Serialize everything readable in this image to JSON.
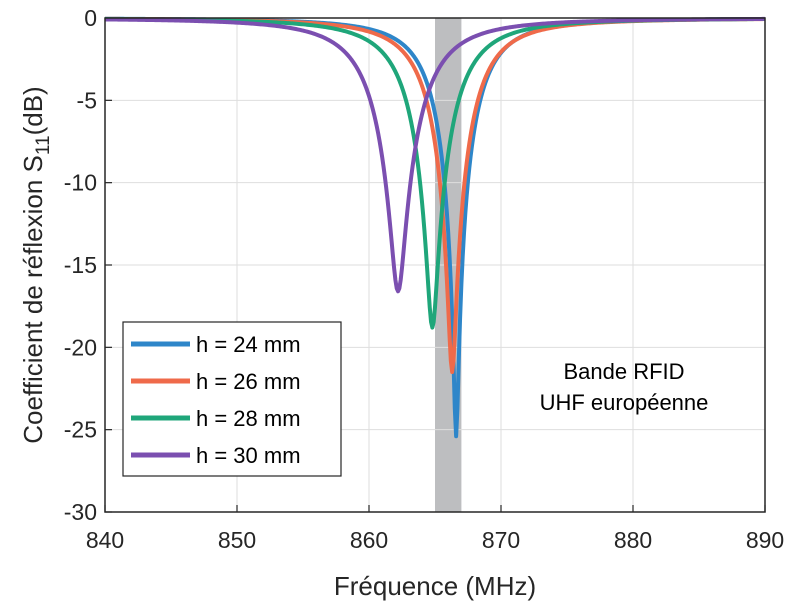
{
  "chart_data": {
    "type": "line",
    "xlabel": "Fréquence (MHz)",
    "ylabel": "Coefficient de réflexion S",
    "ylabel_sub": "11",
    "ylabel_unit": "(dB)",
    "xlim": [
      840,
      890
    ],
    "ylim": [
      -30,
      0
    ],
    "xticks": [
      "840",
      "850",
      "860",
      "870",
      "880",
      "890"
    ],
    "yticks": [
      "0",
      "-5",
      "-10",
      "-15",
      "-20",
      "-25",
      "-30"
    ],
    "grid": true,
    "legend_position": "bottom-left",
    "band": {
      "x": [
        865,
        867
      ],
      "color": "#bdbec0"
    },
    "annotation": [
      "Bande RFID",
      "UHF européenne"
    ],
    "series": [
      {
        "name": "h = 24 mm",
        "color": "#2e86c9",
        "f0": 866.6,
        "min": -25.4,
        "gamma": 2.7
      },
      {
        "name": "h = 26 mm",
        "color": "#ef6a4a",
        "f0": 866.3,
        "min": -21.5,
        "gamma": 2.9
      },
      {
        "name": "h = 28 mm",
        "color": "#1fa67a",
        "f0": 864.8,
        "min": -18.8,
        "gamma": 3.0
      },
      {
        "name": "h = 30 mm",
        "color": "#7b4fb0",
        "f0": 862.2,
        "min": -16.6,
        "gamma": 3.2
      }
    ]
  }
}
